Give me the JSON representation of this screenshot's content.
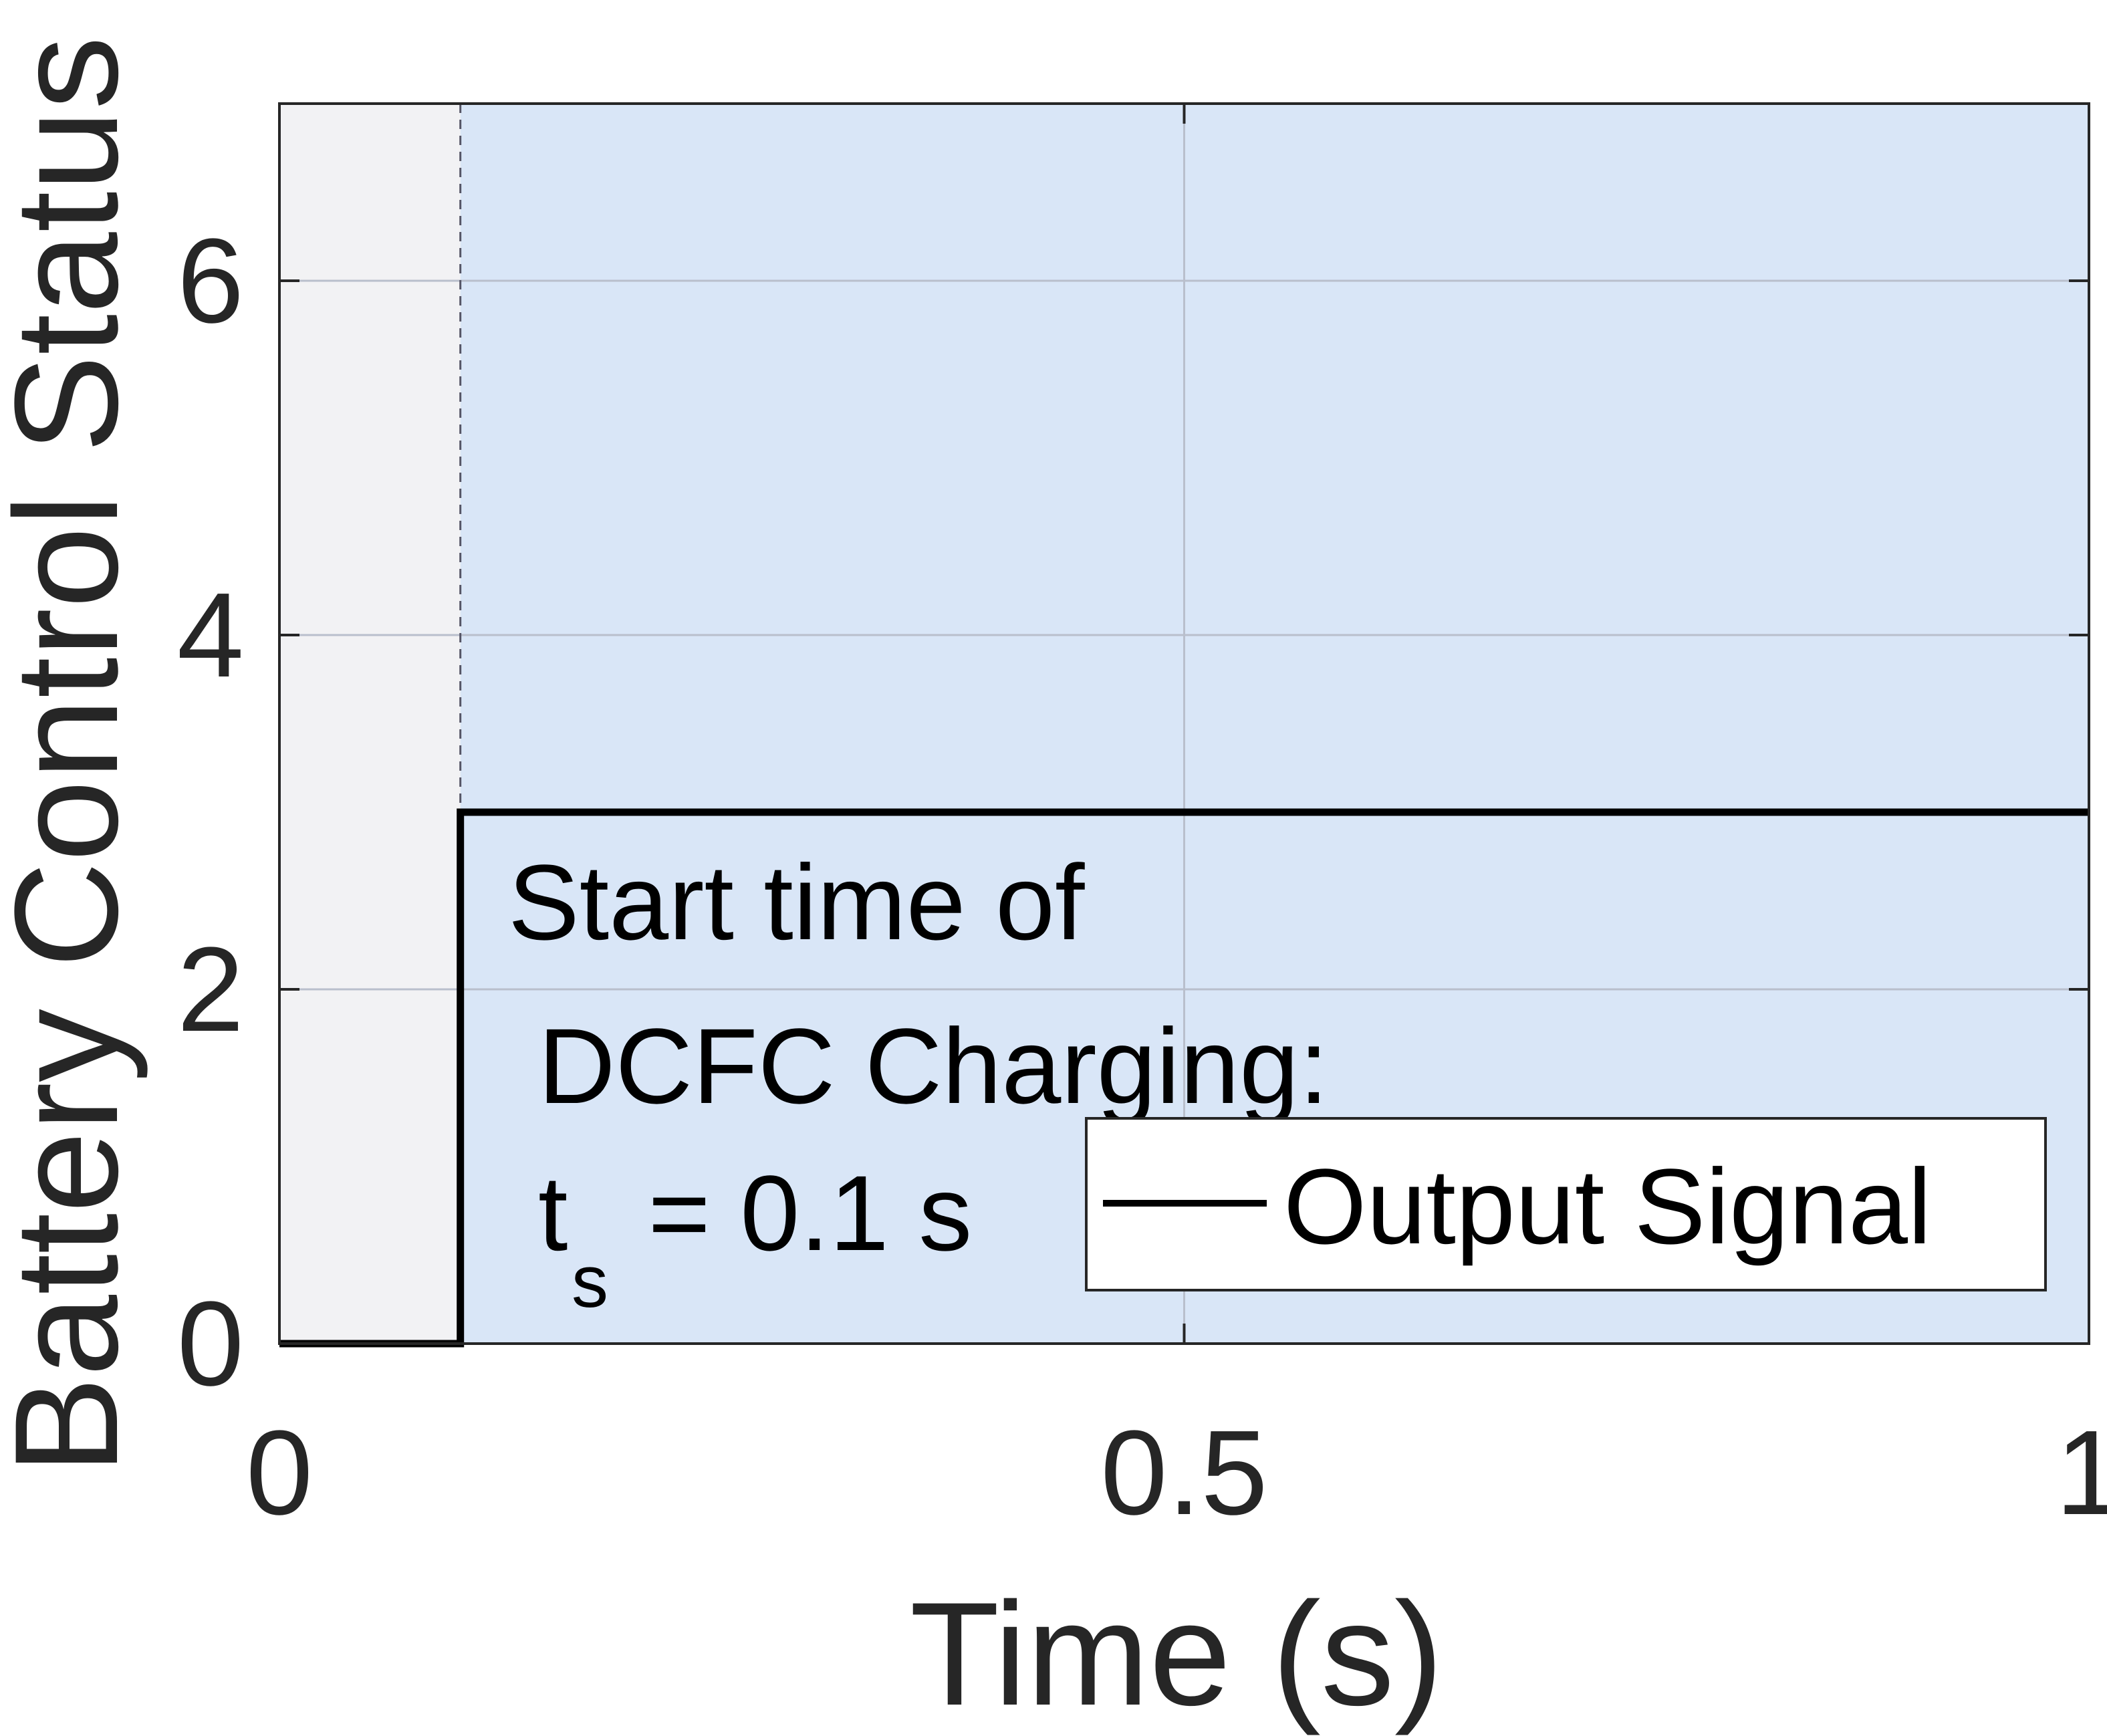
{
  "chart_data": {
    "type": "line",
    "xlabel": "Time (s)",
    "ylabel": "Battery Control Status",
    "xlim": [
      0,
      1
    ],
    "ylim": [
      0,
      7
    ],
    "xticks": [
      0,
      0.5,
      1
    ],
    "xtick_labels": [
      "0",
      "0.5",
      "1"
    ],
    "yticks": [
      0,
      2,
      4,
      6
    ],
    "ytick_labels": [
      "0",
      "2",
      "4",
      "6"
    ],
    "grid": true,
    "series": [
      {
        "name": "Output Signal",
        "color": "#000000",
        "x": [
          0,
          0.1,
          0.1,
          1
        ],
        "y": [
          0,
          0,
          3,
          3
        ]
      }
    ],
    "shaded_regions": [
      {
        "x_start": 0,
        "x_end": 0.1,
        "color": "#f2f2f4"
      },
      {
        "x_start": 0.1,
        "x_end": 1,
        "color": "#d9e6f7"
      }
    ],
    "vertical_marker": {
      "x": 0.1,
      "style": "dashed",
      "color": "#555566"
    },
    "legend": {
      "position": "lower-right",
      "entries": [
        "Output Signal"
      ]
    },
    "annotation": {
      "line1": "Start time of",
      "line2": "DCFC Charging:",
      "line3_main": "t",
      "line3_sub": "s",
      "line3_rest": " = 0.1 s"
    }
  }
}
